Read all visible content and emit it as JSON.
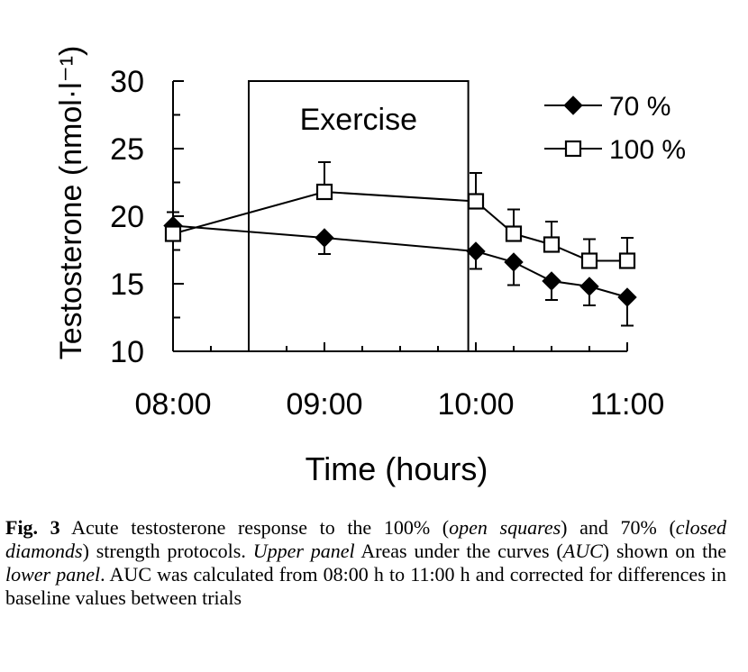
{
  "chart_data": {
    "type": "line",
    "title": "",
    "xlabel": "Time (hours)",
    "ylabel": "Testosterone (nmol·l⁻¹)",
    "ylim": [
      10,
      30
    ],
    "yticks": [
      10,
      15,
      20,
      25,
      30
    ],
    "xlim": [
      0,
      3
    ],
    "xtick_labels": [
      "08:00",
      "09:00",
      "10:00",
      "11:00"
    ],
    "grid": false,
    "legend_position": "top-right",
    "annotation": {
      "text": "Exercise",
      "x_start": 0.5,
      "x_end": 1.95,
      "y_bottom": 10,
      "y_top": 30
    },
    "series": [
      {
        "name": "70 %",
        "marker": "filled-diamond",
        "x": [
          0,
          1,
          2,
          2.25,
          2.5,
          2.75,
          3
        ],
        "y": [
          19.3,
          18.4,
          17.4,
          16.6,
          15.2,
          14.8,
          14.0
        ],
        "error": [
          1.1,
          1.2,
          1.3,
          1.7,
          1.4,
          1.4,
          2.1
        ]
      },
      {
        "name": "100 %",
        "marker": "open-square",
        "x": [
          0,
          1,
          2,
          2.25,
          2.5,
          2.75,
          3
        ],
        "y": [
          18.7,
          21.8,
          21.1,
          18.7,
          17.9,
          16.7,
          16.7
        ],
        "error": [
          1.6,
          2.2,
          2.1,
          1.8,
          1.7,
          1.6,
          1.7
        ]
      }
    ]
  },
  "caption": {
    "label": "Fig. 3",
    "t1": " Acute testosterone response to the 100% (",
    "i1": "open squares",
    "t2": ") and 70% (",
    "i2": "closed diamonds",
    "t3": ") strength protocols. ",
    "i3": "Upper panel",
    "t4": " Areas under the curves (",
    "i4": "AUC",
    "t5": ") shown on the ",
    "i5": "lower panel",
    "t6": ". AUC was calculated from 08:00 h to 11:00 h and corrected for differences in baseline values between trials"
  }
}
